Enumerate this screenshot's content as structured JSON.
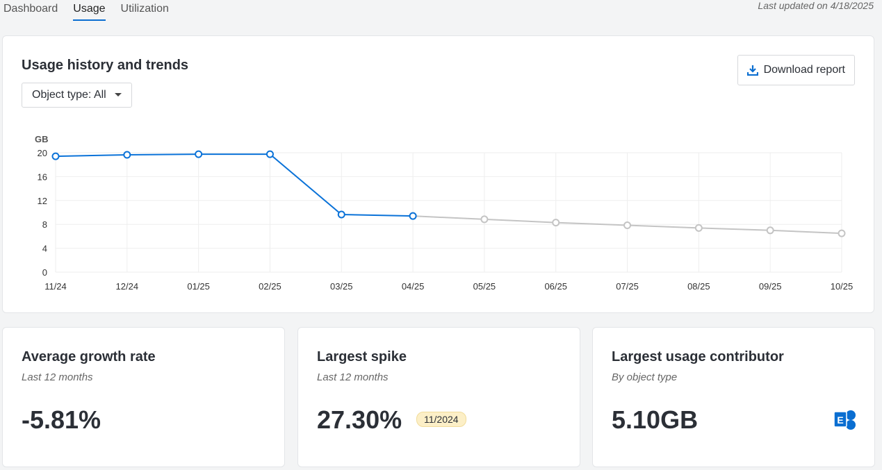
{
  "tabs": [
    {
      "label": "Dashboard"
    },
    {
      "label": "Usage",
      "active": true
    },
    {
      "label": "Utilization"
    }
  ],
  "last_updated": "Last updated on 4/18/2025",
  "main": {
    "title": "Usage history and trends",
    "filter_label": "Object type: All",
    "download_label": "Download report"
  },
  "chart_data": {
    "type": "line",
    "ylabel": "GB",
    "ylim": [
      0,
      20
    ],
    "yticks": [
      0,
      4,
      8,
      12,
      16,
      20
    ],
    "grid": true,
    "categories": [
      "11/24",
      "12/24",
      "01/25",
      "02/25",
      "03/25",
      "04/25",
      "05/25",
      "06/25",
      "07/25",
      "08/25",
      "09/25",
      "10/25"
    ],
    "series": [
      {
        "kind": "actual",
        "color": "#0a72d8",
        "values": [
          19.4,
          19.65,
          19.75,
          19.75,
          9.65,
          9.4,
          null,
          null,
          null,
          null,
          null,
          null
        ]
      },
      {
        "kind": "forecast",
        "color": "#c4c4c4",
        "values": [
          null,
          null,
          null,
          null,
          null,
          9.4,
          8.85,
          8.3,
          7.85,
          7.4,
          7.0,
          6.5
        ]
      }
    ]
  },
  "stats": [
    {
      "title": "Average growth rate",
      "subtitle": "Last 12 months",
      "value": "-5.81%"
    },
    {
      "title": "Largest spike",
      "subtitle": "Last 12 months",
      "value": "27.30%",
      "badge": "11/2024"
    },
    {
      "title": "Largest usage contributor",
      "subtitle": "By object type",
      "value": "5.10GB",
      "icon": "exchange-icon",
      "icon_color": "#0a6ed1"
    }
  ]
}
